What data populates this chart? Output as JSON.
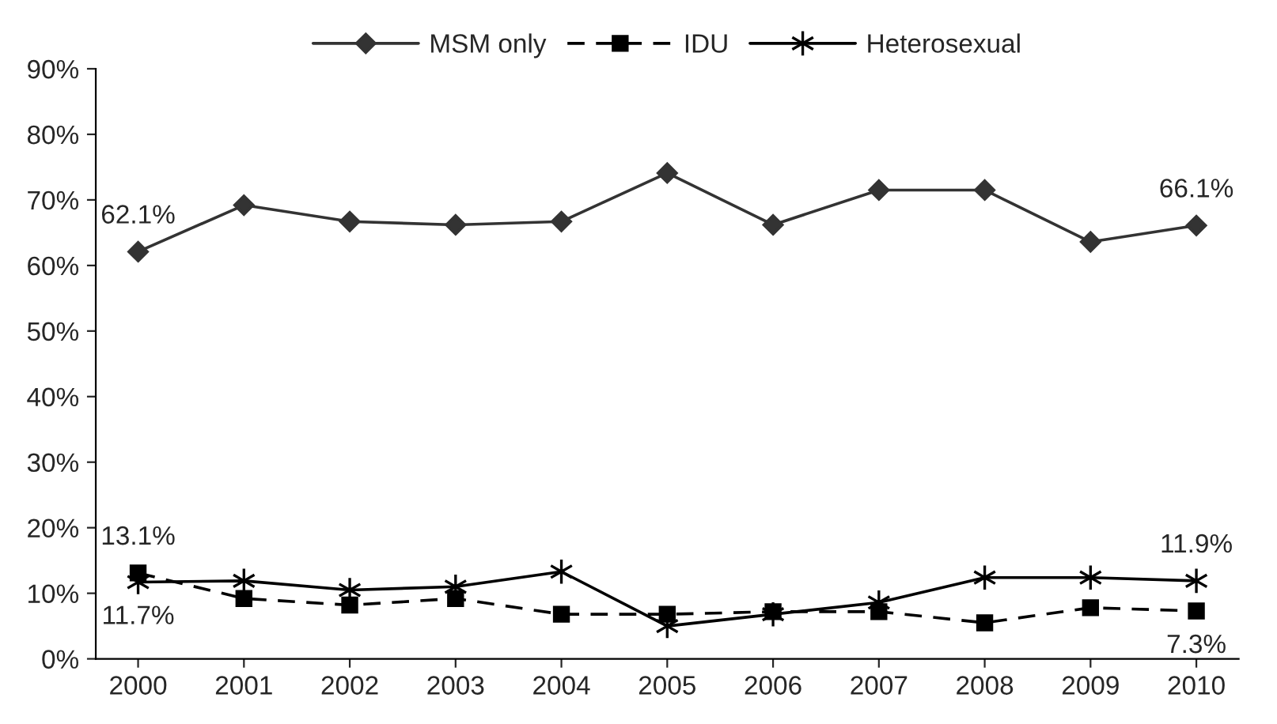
{
  "chart_data": {
    "type": "line",
    "categories": [
      "2000",
      "2001",
      "2002",
      "2003",
      "2004",
      "2005",
      "2006",
      "2007",
      "2008",
      "2009",
      "2010"
    ],
    "series": [
      {
        "name": "MSM only",
        "color": "#333333",
        "marker": "diamond",
        "line_style": "solid",
        "values": [
          62.1,
          69.2,
          66.7,
          66.2,
          66.7,
          74.1,
          66.2,
          71.5,
          71.5,
          63.6,
          66.1
        ]
      },
      {
        "name": "IDU",
        "color": "#000000",
        "marker": "square",
        "line_style": "dashed",
        "values": [
          13.1,
          9.2,
          8.2,
          9.2,
          6.8,
          6.8,
          7.2,
          7.2,
          5.5,
          7.8,
          7.3
        ]
      },
      {
        "name": "Heterosexual",
        "color": "#000000",
        "marker": "cross",
        "line_style": "solid",
        "values": [
          11.7,
          11.9,
          10.5,
          11.0,
          13.3,
          5.0,
          6.8,
          8.6,
          12.4,
          12.4,
          11.9
        ]
      }
    ],
    "ylim": [
      0,
      90
    ],
    "yticks": [
      {
        "value": 0,
        "label": "0%"
      },
      {
        "value": 10,
        "label": "10%"
      },
      {
        "value": 20,
        "label": "20%"
      },
      {
        "value": 30,
        "label": "30%"
      },
      {
        "value": 40,
        "label": "40%"
      },
      {
        "value": 50,
        "label": "50%"
      },
      {
        "value": 60,
        "label": "60%"
      },
      {
        "value": 70,
        "label": "70%"
      },
      {
        "value": 80,
        "label": "80%"
      },
      {
        "value": 90,
        "label": "90%"
      }
    ],
    "grid": false,
    "legend": "top",
    "annotations": [
      {
        "text": "62.1%",
        "x": "2000",
        "y": 62.1
      },
      {
        "text": "66.1%",
        "x": "2010",
        "y": 66.1
      },
      {
        "text": "13.1%",
        "x": "2000",
        "y": 13.1
      },
      {
        "text": "11.7%",
        "x": "2000",
        "y": 11.7
      },
      {
        "text": "11.9%",
        "x": "2010",
        "y": 11.9
      },
      {
        "text": "7.3%",
        "x": "2010",
        "y": 7.3
      }
    ]
  }
}
